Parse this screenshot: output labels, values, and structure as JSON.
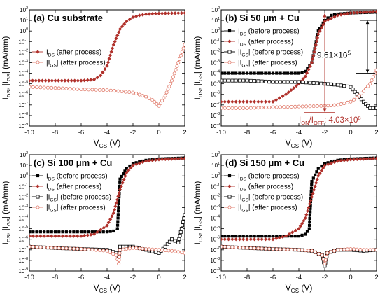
{
  "chart_data": [
    {
      "type": "line",
      "panel_title": "(a) Cu substrate",
      "ylabel": "I_DS, |I_GS| (mA/mm)",
      "xlabel": "V_GS (V)",
      "xlim": [
        -10,
        2
      ],
      "ylim_log10": [
        -9,
        2
      ],
      "xticks": [
        "-10",
        "-8",
        "-6",
        "-4",
        "-2",
        "0",
        "2"
      ],
      "yticks": [
        "10^-9",
        "10^-8",
        "10^-7",
        "10^-6",
        "10^-5",
        "10^-4",
        "10^-3",
        "10^-2",
        "10^-1",
        "10^0",
        "10^1",
        "10^2"
      ],
      "legend_position": "center-left",
      "annotations": [],
      "series": [
        {
          "name": "I_DS (after process)",
          "color": "#b0302a",
          "marker": "filled-diamond",
          "x": [
            -10,
            -9,
            -8,
            -7,
            -6,
            -5,
            -4.5,
            -4,
            -3.5,
            -3,
            -2.5,
            -2,
            -1.5,
            -1,
            -0.5,
            0,
            1,
            2
          ],
          "y": [
            2e-05,
            2e-05,
            2e-05,
            2e-05,
            2e-05,
            2.5e-05,
            6e-05,
            0.0005,
            0.05,
            1.5,
            8,
            20,
            30,
            38,
            42,
            45,
            48,
            50
          ]
        },
        {
          "name": "|I_GS| (after process)",
          "color": "#e07a6a",
          "marker": "open-circle",
          "x": [
            -10,
            -8,
            -6,
            -4,
            -2,
            -1,
            -0.5,
            0,
            0.5,
            1,
            1.5,
            2
          ],
          "y": [
            5e-06,
            4e-06,
            3e-06,
            2.5e-06,
            1.5e-06,
            6e-07,
            3e-07,
            8e-08,
            8e-07,
            2e-05,
            0.001,
            0.05
          ]
        }
      ]
    },
    {
      "type": "line",
      "panel_title": "(b) Si 50 μm + Cu",
      "ylabel": "I_DS, |I_GS| (mA/mm)",
      "xlabel": "V_GS (V)",
      "xlim": [
        -10,
        2
      ],
      "ylim_log10": [
        -9,
        2
      ],
      "xticks": [
        "-10",
        "-8",
        "-6",
        "-4",
        "-2",
        "0",
        "2"
      ],
      "yticks": [
        "10^-9",
        "10^-8",
        "10^-7",
        "10^-6",
        "10^-5",
        "10^-4",
        "10^-3",
        "10^-2",
        "10^-1",
        "10^0",
        "10^1",
        "10^2"
      ],
      "legend_position": "center-left",
      "annotations": [
        "9.61×10^5",
        "I_ON/I_OFF: 4.03×10^8"
      ],
      "series": [
        {
          "name": "I_DS (before process)",
          "color": "#000000",
          "marker": "filled-square",
          "x": [
            -10,
            -8,
            -6,
            -4,
            -3.5,
            -3,
            -2.5,
            -2,
            -1.5,
            -1,
            0,
            1,
            2
          ],
          "y": [
            0.0001,
            0.0001,
            0.0001,
            0.0001,
            0.00015,
            0.001,
            1,
            10,
            30,
            40,
            50,
            55,
            60
          ]
        },
        {
          "name": "I_DS (after process)",
          "color": "#b0302a",
          "marker": "filled-diamond",
          "x": [
            -10,
            -8,
            -6,
            -5,
            -4,
            -3.5,
            -3,
            -2.5,
            -2,
            -1,
            0,
            1,
            2
          ],
          "y": [
            2e-07,
            2e-07,
            2e-07,
            1e-06,
            1e-05,
            5e-05,
            0.001,
            0.5,
            8,
            30,
            50,
            60,
            70
          ]
        },
        {
          "name": "|I_GS| (before process)",
          "color": "#000000",
          "marker": "open-square",
          "x": [
            -10,
            -8,
            -6,
            -4,
            -2,
            -1,
            0,
            0.5,
            1,
            1.5,
            2
          ],
          "y": [
            2e-05,
            2e-05,
            1.5e-05,
            1.5e-05,
            1e-05,
            8e-06,
            5e-06,
            1e-06,
            2e-07,
            5e-08,
            5e-08
          ]
        },
        {
          "name": "|I_GS| (after process)",
          "color": "#e07a6a",
          "marker": "open-circle",
          "x": [
            -10,
            -8,
            -6,
            -4,
            -2,
            -1,
            0,
            0.5,
            1,
            1.5,
            2
          ],
          "y": [
            5e-08,
            5e-08,
            6e-08,
            7e-08,
            8e-08,
            1e-07,
            2e-07,
            5e-07,
            2e-06,
            1e-05,
            0.0002
          ]
        }
      ]
    },
    {
      "type": "line",
      "panel_title": "(c) Si 100 μm + Cu",
      "ylabel": "I_DS, |I_GS| (mA/mm)",
      "xlabel": "V_GS (V)",
      "xlim": [
        -10,
        2
      ],
      "ylim_log10": [
        -9,
        2
      ],
      "xticks": [
        "-10",
        "-8",
        "-6",
        "-4",
        "-2",
        "0",
        "2"
      ],
      "yticks": [
        "10^-9",
        "10^-8",
        "10^-7",
        "10^-6",
        "10^-5",
        "10^-4",
        "10^-3",
        "10^-2",
        "10^-1",
        "10^0",
        "10^1",
        "10^2"
      ],
      "legend_position": "center-left",
      "annotations": [],
      "series": [
        {
          "name": "I_DS (before process)",
          "color": "#000000",
          "marker": "filled-square",
          "x": [
            -10,
            -8,
            -6,
            -4,
            -3.5,
            -3.2,
            -3,
            -2.5,
            -2,
            -1,
            0,
            1,
            2
          ],
          "y": [
            5e-06,
            5e-06,
            5e-06,
            5e-06,
            6e-06,
            1e-05,
            0.5,
            5,
            15,
            30,
            40,
            45,
            50
          ]
        },
        {
          "name": "I_DS (after process)",
          "color": "#b0302a",
          "marker": "filled-diamond",
          "x": [
            -10,
            -8,
            -6,
            -5,
            -4,
            -3.5,
            -3,
            -2.5,
            -2,
            -1,
            0,
            1,
            2
          ],
          "y": [
            2e-06,
            2e-06,
            2e-06,
            3e-06,
            2e-05,
            0.0003,
            0.05,
            2,
            10,
            25,
            35,
            40,
            45
          ]
        },
        {
          "name": "|I_GS| (before process)",
          "color": "#000000",
          "marker": "open-square",
          "x": [
            -10,
            -8,
            -6,
            -4,
            -3.3,
            -3.1,
            -3,
            -2,
            -1,
            0,
            0.5,
            1,
            1.5,
            2
          ],
          "y": [
            2e-07,
            1.5e-07,
            1.2e-07,
            1e-07,
            5e-08,
            2e-08,
            2e-07,
            2e-07,
            1e-07,
            5e-08,
            2e-07,
            1e-06,
            5e-07,
            0.0002
          ]
        },
        {
          "name": "|I_GS| (after process)",
          "color": "#e07a6a",
          "marker": "open-circle",
          "x": [
            -10,
            -8,
            -6,
            -4,
            -3.3,
            -3.1,
            -3,
            -2,
            -1,
            0,
            1,
            2
          ],
          "y": [
            2e-07,
            1.5e-07,
            1.2e-07,
            8e-08,
            3e-08,
            5e-09,
            1e-07,
            1.5e-07,
            1.2e-07,
            1e-07,
            8e-08,
            5e-08
          ]
        }
      ]
    },
    {
      "type": "line",
      "panel_title": "(d) Si 150 μm + Cu",
      "ylabel": "I_DS, |I_GS| (mA/mm)",
      "xlabel": "V_GS (V)",
      "xlim": [
        -10,
        2
      ],
      "ylim_log10": [
        -9,
        2
      ],
      "xticks": [
        "-10",
        "-8",
        "-6",
        "-4",
        "-2",
        "0",
        "2"
      ],
      "yticks": [
        "10^-9",
        "10^-8",
        "10^-7",
        "10^-6",
        "10^-5",
        "10^-4",
        "10^-3",
        "10^-2",
        "10^-1",
        "10^0",
        "10^1",
        "10^2"
      ],
      "legend_position": "center-left",
      "annotations": [],
      "series": [
        {
          "name": "I_DS (before process)",
          "color": "#000000",
          "marker": "filled-square",
          "x": [
            -10,
            -8,
            -6,
            -4,
            -3.5,
            -3.2,
            -3,
            -2.5,
            -2,
            -1,
            0,
            1,
            2
          ],
          "y": [
            2e-06,
            2e-06,
            2e-06,
            2e-06,
            3e-06,
            1e-05,
            0.3,
            5,
            15,
            30,
            40,
            45,
            50
          ]
        },
        {
          "name": "I_DS (after process)",
          "color": "#b0302a",
          "marker": "filled-diamond",
          "x": [
            -10,
            -8,
            -6,
            -5,
            -4,
            -3.5,
            -3,
            -2.5,
            -2,
            -1,
            0,
            1,
            2
          ],
          "y": [
            1e-06,
            1e-06,
            1e-06,
            2e-06,
            1e-05,
            0.0001,
            0.01,
            1,
            10,
            25,
            35,
            40,
            45
          ]
        },
        {
          "name": "|I_GS| (before process)",
          "color": "#000000",
          "marker": "open-square",
          "x": [
            -10,
            -8,
            -6,
            -4,
            -3,
            -2.2,
            -2,
            -1.8,
            -1,
            0,
            1,
            2
          ],
          "y": [
            2e-07,
            1.5e-07,
            1.2e-07,
            1e-07,
            8e-08,
            3e-08,
            3e-09,
            5e-08,
            1e-07,
            1e-07,
            8e-08,
            1e-07
          ]
        },
        {
          "name": "|I_GS| (after process)",
          "color": "#e07a6a",
          "marker": "open-circle",
          "x": [
            -10,
            -8,
            -6,
            -4,
            -3,
            -2.2,
            -2,
            -1.8,
            -1,
            0,
            1,
            2
          ],
          "y": [
            2e-07,
            1.5e-07,
            1.2e-07,
            1e-07,
            8e-08,
            3e-08,
            5e-09,
            5e-08,
            1e-07,
            1.2e-07,
            1e-07,
            1e-07
          ]
        }
      ]
    }
  ]
}
